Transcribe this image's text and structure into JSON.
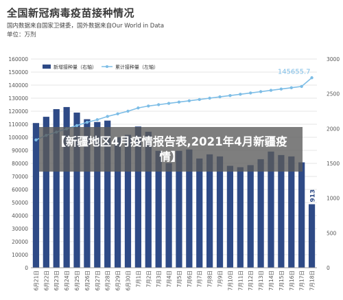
{
  "header": {
    "title": "全国新冠病毒疫苗接种情况",
    "subtitle": "国内数据来自国家卫健委，国外数据来自Our World in Data",
    "unit": "单位：万剂"
  },
  "overlay": {
    "text": "【新疆地区4月疫情报告表,2021年4月新疆疫情】"
  },
  "colors": {
    "bar": "#2e4a86",
    "line": "#7dbde6",
    "axis_text": "#555555",
    "grid": "#e6e6e6"
  },
  "chart_data": {
    "type": "bar",
    "categories": [
      "6月21日",
      "6月22日",
      "6月23日",
      "6月24日",
      "6月25日",
      "6月26日",
      "6月27日",
      "6月28日",
      "6月29日",
      "6月30日",
      "7月1日",
      "7月2日",
      "7月3日",
      "7月4日",
      "7月5日",
      "7月6日",
      "7月7日",
      "7月8日",
      "7月9日",
      "7月10日",
      "7月11日",
      "7月12日",
      "7月13日",
      "7月14日",
      "7月15日",
      "7月16日",
      "7月17日",
      "7月18日"
    ],
    "series": [
      {
        "name": "新增接种量（右轴）",
        "type": "bar",
        "axis": "right",
        "values": [
          2080,
          2170,
          2280,
          2310,
          2230,
          2135,
          2095,
          2115,
          1875,
          1910,
          2030,
          1955,
          1680,
          1505,
          1680,
          1700,
          1570,
          1630,
          1600,
          1465,
          1445,
          1475,
          1560,
          1670,
          1620,
          1600,
          1515,
          913
        ]
      },
      {
        "name": "累计接种量（左轴）",
        "type": "line",
        "axis": "left",
        "values": [
          98000,
          101500,
          104000,
          106500,
          109000,
          111500,
          113500,
          116000,
          118000,
          120000,
          122500,
          124000,
          125000,
          126000,
          127000,
          128000,
          129000,
          130000,
          131000,
          132000,
          133000,
          134000,
          135000,
          136000,
          137000,
          138000,
          139000,
          145655.7
        ]
      }
    ],
    "annotations": [
      {
        "series": "累计接种量（左轴）",
        "label": "145655.7"
      },
      {
        "series": "新增接种量（右轴）",
        "label": "913"
      }
    ],
    "left_axis": {
      "ylim": [
        0,
        160000
      ],
      "ticks": [
        0,
        10000,
        20000,
        30000,
        40000,
        50000,
        60000,
        70000,
        80000,
        90000,
        100000,
        110000,
        120000,
        130000,
        140000,
        150000,
        160000
      ]
    },
    "right_axis": {
      "ylim": [
        0,
        3000
      ],
      "ticks": [
        0,
        500,
        1000,
        1500,
        2000,
        2500,
        3000
      ]
    },
    "legend": "top-left",
    "grid": true
  }
}
